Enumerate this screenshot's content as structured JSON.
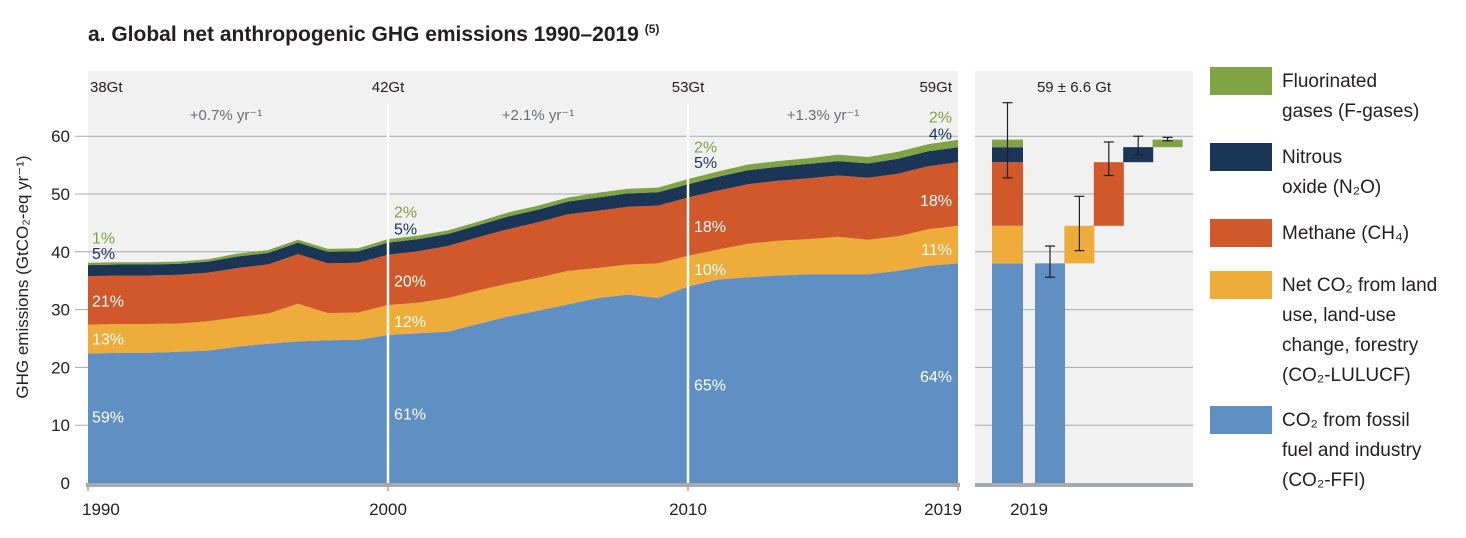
{
  "title": {
    "text": "a. Global net anthropogenic GHG emissions 1990–2019",
    "note": "(5)"
  },
  "chart_data": [
    {
      "type": "area",
      "stacked": true,
      "ylabel": "GHG emissions (GtCO₂-eq yr⁻¹)",
      "ylim": [
        0,
        64
      ],
      "yticks": [
        0,
        10,
        20,
        30,
        40,
        50,
        60
      ],
      "xlim": [
        1990,
        2019
      ],
      "xticks": [
        1990,
        2000,
        2010,
        2019
      ],
      "grid": true,
      "x": [
        1990,
        1991,
        1992,
        1993,
        1994,
        1995,
        1996,
        1997,
        1998,
        1999,
        2000,
        2001,
        2002,
        2003,
        2004,
        2005,
        2006,
        2007,
        2008,
        2009,
        2010,
        2011,
        2012,
        2013,
        2014,
        2015,
        2016,
        2017,
        2018,
        2019
      ],
      "series": [
        {
          "name": "CO₂ from fossil fuel and industry (CO₂-FFI)",
          "color": "#608fc4",
          "values": [
            22.4,
            22.5,
            22.5,
            22.7,
            22.9,
            23.6,
            24.1,
            24.5,
            24.7,
            24.8,
            25.6,
            25.9,
            26.2,
            27.5,
            28.8,
            29.8,
            30.9,
            32.0,
            32.6,
            32.0,
            34.0,
            35.2,
            35.6,
            35.9,
            36.1,
            36.1,
            36.1,
            36.7,
            37.6,
            38.0
          ]
        },
        {
          "name": "Net CO₂ from land use, land-use change, forestry (CO₂-LULUCF)",
          "color": "#eeac3b",
          "values": [
            5.0,
            5.0,
            5.0,
            4.9,
            5.1,
            5.1,
            5.2,
            6.5,
            4.7,
            4.7,
            5.2,
            5.3,
            5.8,
            5.8,
            5.7,
            5.7,
            5.8,
            5.2,
            5.2,
            6.0,
            5.3,
            5.2,
            5.8,
            6.0,
            6.1,
            6.5,
            6.0,
            6.0,
            6.3,
            6.5
          ]
        },
        {
          "name": "Methane (CH₄)",
          "color": "#d0582b",
          "values": [
            8.4,
            8.4,
            8.4,
            8.4,
            8.4,
            8.5,
            8.5,
            8.6,
            8.6,
            8.6,
            8.7,
            8.9,
            9.0,
            9.2,
            9.4,
            9.6,
            9.8,
            9.9,
            10.0,
            10.0,
            10.1,
            10.2,
            10.3,
            10.4,
            10.5,
            10.6,
            10.7,
            10.8,
            10.9,
            11.0
          ]
        },
        {
          "name": "Nitrous oxide (N₂O)",
          "color": "#1b3556",
          "values": [
            1.9,
            1.9,
            1.9,
            1.9,
            1.9,
            2.0,
            2.0,
            2.0,
            2.0,
            2.0,
            2.1,
            2.1,
            2.1,
            2.1,
            2.2,
            2.2,
            2.2,
            2.3,
            2.3,
            2.3,
            2.3,
            2.4,
            2.4,
            2.4,
            2.5,
            2.5,
            2.5,
            2.6,
            2.6,
            2.6
          ]
        },
        {
          "name": "Fluorinated gases (F-gases)",
          "color": "#80a344",
          "values": [
            0.4,
            0.4,
            0.4,
            0.4,
            0.4,
            0.5,
            0.5,
            0.5,
            0.5,
            0.5,
            0.6,
            0.6,
            0.6,
            0.6,
            0.7,
            0.7,
            0.7,
            0.8,
            0.8,
            0.8,
            0.9,
            0.9,
            1.0,
            1.0,
            1.0,
            1.1,
            1.1,
            1.2,
            1.2,
            1.3
          ]
        }
      ],
      "totals": [
        {
          "x": 1990,
          "label": "38Gt"
        },
        {
          "x": 2000,
          "label": "42Gt"
        },
        {
          "x": 2010,
          "label": "53Gt"
        },
        {
          "x": 2019,
          "label": "59Gt"
        }
      ],
      "growth_rates": [
        {
          "label": "+0.7% yr⁻¹",
          "x": 1994.6
        },
        {
          "label": "+2.1% yr⁻¹",
          "x": 2005
        },
        {
          "label": "+1.3% yr⁻¹",
          "x": 2014.5
        }
      ],
      "share_labels": [
        {
          "year": 1990,
          "values": [
            {
              "text": "59%",
              "y": 11.5,
              "color": "#ffffff"
            },
            {
              "text": "13%",
              "y": 25.0,
              "color": "#ffffff"
            },
            {
              "text": "21%",
              "y": 31.6,
              "color": "#ffffff"
            },
            {
              "text": "5%",
              "y": 39.8,
              "color": "#1b3556"
            },
            {
              "text": "1%",
              "y": 42.5,
              "color": "#80a344"
            }
          ]
        },
        {
          "year": 2000,
          "values": [
            {
              "text": "61%",
              "y": 12.0,
              "color": "#ffffff"
            },
            {
              "text": "12%",
              "y": 28.0,
              "color": "#ffffff"
            },
            {
              "text": "20%",
              "y": 35.0,
              "color": "#ffffff"
            },
            {
              "text": "5%",
              "y": 44.0,
              "color": "#1b3556"
            },
            {
              "text": "2%",
              "y": 47.0,
              "color": "#80a344"
            }
          ]
        },
        {
          "year": 2010,
          "values": [
            {
              "text": "65%",
              "y": 17.0,
              "color": "#ffffff"
            },
            {
              "text": "10%",
              "y": 37.0,
              "color": "#ffffff"
            },
            {
              "text": "18%",
              "y": 44.5,
              "color": "#ffffff"
            },
            {
              "text": "5%",
              "y": 55.5,
              "color": "#1b3556"
            },
            {
              "text": "2%",
              "y": 58.2,
              "color": "#80a344"
            }
          ]
        },
        {
          "year": 2019,
          "values": [
            {
              "text": "64%",
              "y": 18.5,
              "color": "#ffffff"
            },
            {
              "text": "11%",
              "y": 40.5,
              "color": "#ffffff"
            },
            {
              "text": "18%",
              "y": 49.0,
              "color": "#ffffff"
            },
            {
              "text": "4%",
              "y": 60.5,
              "color": "#1b3556"
            },
            {
              "text": "2%",
              "y": 63.4,
              "color": "#80a344"
            }
          ]
        }
      ]
    },
    {
      "type": "bar",
      "subtype": "waterfall",
      "title": "59 ± 6.6 Gt",
      "xlabel": "2019",
      "ylim": [
        0,
        64
      ],
      "total_bar": {
        "stack": [
          {
            "name": "CO₂-FFI",
            "value": 38.0,
            "color": "#608fc4"
          },
          {
            "name": "CO₂-LULUCF",
            "value": 6.5,
            "color": "#eeac3b"
          },
          {
            "name": "CH₄",
            "value": 11.0,
            "color": "#d0582b"
          },
          {
            "name": "N₂O",
            "value": 2.6,
            "color": "#1b3556"
          },
          {
            "name": "F-gases",
            "value": 1.3,
            "color": "#80a344"
          }
        ],
        "error": [
          52.8,
          65.8
        ]
      },
      "components": [
        {
          "name": "CO₂-FFI",
          "start": 0,
          "end": 38.0,
          "color": "#608fc4",
          "error": [
            35.6,
            41.0
          ]
        },
        {
          "name": "CO₂-LULUCF",
          "start": 38.0,
          "end": 44.5,
          "color": "#eeac3b",
          "error": [
            40.2,
            49.6
          ]
        },
        {
          "name": "CH₄",
          "start": 44.5,
          "end": 55.5,
          "color": "#d0582b",
          "error": [
            53.2,
            59.0
          ]
        },
        {
          "name": "N₂O",
          "start": 55.5,
          "end": 58.1,
          "color": "#1b3556",
          "error": [
            56.8,
            60.0
          ]
        },
        {
          "name": "F-gases",
          "start": 58.1,
          "end": 59.4,
          "color": "#80a344",
          "error": [
            59.2,
            59.8
          ]
        }
      ]
    }
  ],
  "legend": [
    {
      "lines": [
        "Fluorinated",
        "gases (F-gases)"
      ],
      "color": "#80a344"
    },
    {
      "lines": [
        "Nitrous",
        "oxide (N₂O)"
      ],
      "color": "#1b3556"
    },
    {
      "lines": [
        "Methane (CH₄)"
      ],
      "color": "#d0582b"
    },
    {
      "lines": [
        "Net CO₂ from land",
        "use, land-use",
        "change, forestry",
        "(CO₂-LULUCF)"
      ],
      "color": "#eeac3b"
    },
    {
      "lines": [
        "CO₂ from fossil",
        "fuel and industry",
        "(CO₂-FFI)"
      ],
      "color": "#608fc4"
    }
  ]
}
